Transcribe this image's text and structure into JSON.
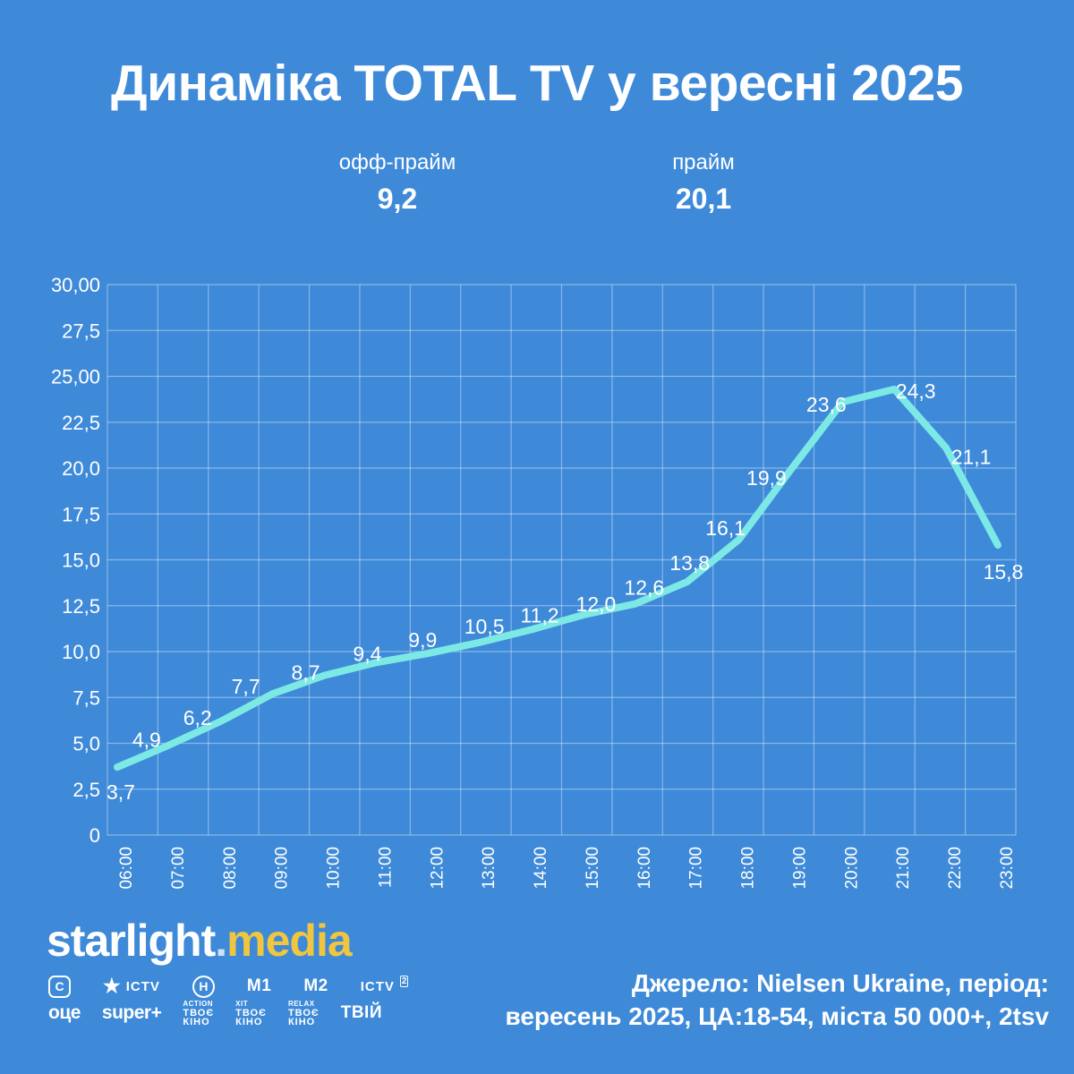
{
  "title": "Динаміка TOTAL TV у вересні 2025",
  "stats": [
    {
      "label": "офф-прайм",
      "value": "9,2"
    },
    {
      "label": "прайм",
      "value": "20,1"
    }
  ],
  "chart_data": {
    "type": "line",
    "title": "Динаміка TOTAL TV у вересні 2025",
    "x": [
      "06:00",
      "07:00",
      "08:00",
      "09:00",
      "10:00",
      "11:00",
      "12:00",
      "13:00",
      "14:00",
      "15:00",
      "16:00",
      "17:00",
      "18:00",
      "19:00",
      "20:00",
      "21:00",
      "22:00",
      "23:00"
    ],
    "series": [
      {
        "name": "Total TV",
        "values": [
          3.7,
          4.9,
          6.2,
          7.7,
          8.7,
          9.4,
          9.9,
          10.5,
          11.2,
          12.0,
          12.6,
          13.8,
          16.1,
          19.9,
          23.6,
          24.3,
          21.1,
          15.8
        ]
      }
    ],
    "point_labels": [
      "3,7",
      "4,9",
      "6,2",
      "7,7",
      "8,7",
      "9,4",
      "9,9",
      "10,5",
      "11,2",
      "12,0",
      "12,6",
      "13,8",
      "16,1",
      "19,9",
      "23,6",
      "24,3",
      "21,1",
      "15,8"
    ],
    "y_tick_labels": [
      "0",
      "2,5",
      "5,0",
      "7,5",
      "10,0",
      "12,5",
      "15,0",
      "17,5",
      "20,0",
      "22,5",
      "25,00",
      "27,5",
      "30,00"
    ],
    "xlabel": "",
    "ylabel": "",
    "ylim": [
      0,
      30
    ],
    "y_step": 2.5,
    "grid": true,
    "legend": "none"
  },
  "colors": {
    "background": "#3e8ad8",
    "line": "#7de9e5",
    "grid": "rgba(255,255,255,0.38)",
    "text": "#ffffff",
    "accent_yellow": "#f0c53f",
    "logo_dot": "#cfe2f8"
  },
  "footer": {
    "logo": {
      "part1": "starlight",
      "dot": ".",
      "part2": "media"
    },
    "channel_icons_row1": [
      {
        "name": "stb-icon",
        "type": "boxed-letter",
        "text": "С"
      },
      {
        "name": "ictv-icon",
        "type": "star-text",
        "star": "★",
        "text": "ICTV"
      },
      {
        "name": "novyi-kanal-icon",
        "type": "circle-letter",
        "text": "Н"
      },
      {
        "name": "m1-icon",
        "type": "plain",
        "text": "М1"
      },
      {
        "name": "m2-icon",
        "type": "plain",
        "text": "М2"
      },
      {
        "name": "ictv2-icon",
        "type": "sup2",
        "text": "ICTV",
        "sup": "2"
      }
    ],
    "channel_icons_row2": [
      {
        "name": "oce-icon",
        "type": "plain-lc",
        "text": "оце"
      },
      {
        "name": "superplus-icon",
        "type": "plain-lc",
        "text": "super+"
      },
      {
        "name": "kino-action-icon",
        "type": "stack",
        "tag": "ACTION",
        "l1": "ТВОЄ",
        "l2": "КІНО"
      },
      {
        "name": "kino-xit-icon",
        "type": "stack",
        "tag": "XIT",
        "l1": "ТВОЄ",
        "l2": "КІНО"
      },
      {
        "name": "kino-relax-icon",
        "type": "stack",
        "tag": "RELAX",
        "l1": "ТВОЄ",
        "l2": "КІНО"
      },
      {
        "name": "tvii-icon",
        "type": "plain",
        "text": "ТВІЙ"
      }
    ],
    "source_line1": "Джерело: Nielsen Ukraine, період:",
    "source_line2": "вересень 2025, ЦА:18-54, міста 50 000+, 2tsv"
  }
}
